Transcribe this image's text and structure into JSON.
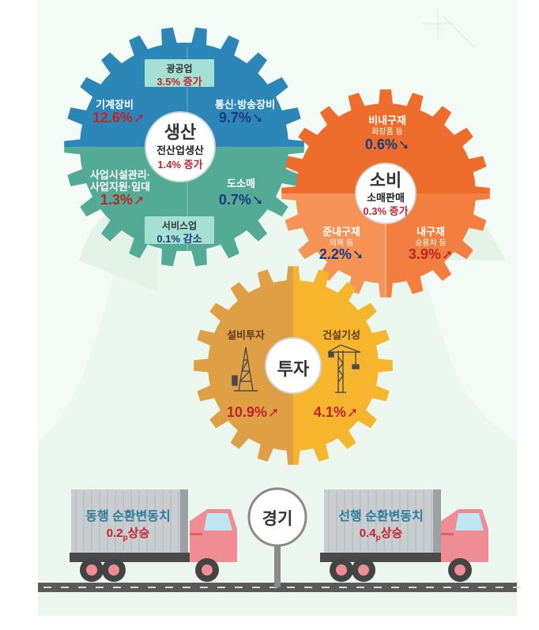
{
  "colors": {
    "production_top": "#2c86b8",
    "production_bottom": "#53ab95",
    "consumption_top": "#ee6d2c",
    "consumption_bottom": "#f58e4f",
    "investment_left": "#dfa045",
    "investment_right": "#f6b52c",
    "increase": "#c0242b",
    "decrease": "#1e3a80",
    "background_mint": "#e8f5ec"
  },
  "production": {
    "title": "생산",
    "center_label": "전산업생산",
    "center_value": "1.4% 증가",
    "mining": {
      "label": "광공업",
      "value": "3.5% 증가"
    },
    "machinery": {
      "label": "기계장비",
      "value": "12.6%",
      "direction": "up",
      "icon": "arrow-up-icon"
    },
    "telecom": {
      "label": "통신·방송장비",
      "value": "9.7%",
      "direction": "down",
      "icon": "arrow-down-icon"
    },
    "facility": {
      "label_line1": "사업시설관리·",
      "label_line2": "사업지원·임대",
      "value": "1.3%",
      "direction": "up",
      "icon": "arrow-up-icon"
    },
    "wholesale": {
      "label": "도소매",
      "value": "0.7%",
      "direction": "down",
      "icon": "arrow-down-icon"
    },
    "service": {
      "label": "서비스업",
      "value": "0.1% 감소"
    }
  },
  "consumption": {
    "title": "소비",
    "center_label": "소매판매",
    "center_value": "0.3% 증가",
    "nondurable": {
      "label": "비내구재",
      "sub": "화장품 등",
      "value": "0.6%",
      "direction": "down",
      "icon": "arrow-down-icon"
    },
    "semidurable": {
      "label": "준내구재",
      "sub": "의복 등",
      "value": "2.2%",
      "direction": "down",
      "icon": "arrow-down-icon"
    },
    "durable": {
      "label": "내구재",
      "sub": "승용차 등",
      "value": "3.9%",
      "direction": "up",
      "icon": "arrow-up-icon"
    }
  },
  "investment": {
    "title": "투자",
    "facilities": {
      "label": "설비투자",
      "value": "10.9%",
      "direction": "up",
      "icon": "oil-derrick-icon"
    },
    "construction": {
      "label": "건설기성",
      "value": "4.1%",
      "direction": "up",
      "icon": "tower-crane-icon"
    }
  },
  "economy": {
    "sign": "경기",
    "coincident": {
      "label": "동행 순환변동치",
      "value": "0.2",
      "unit": "p",
      "change": "상승"
    },
    "leading": {
      "label": "선행 순환변동치",
      "value": "0.4",
      "unit": "p",
      "change": "상승"
    }
  }
}
